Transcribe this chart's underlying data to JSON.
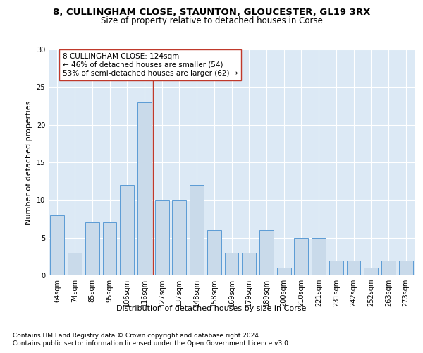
{
  "title1": "8, CULLINGHAM CLOSE, STAUNTON, GLOUCESTER, GL19 3RX",
  "title2": "Size of property relative to detached houses in Corse",
  "xlabel": "Distribution of detached houses by size in Corse",
  "ylabel": "Number of detached properties",
  "categories": [
    "64sqm",
    "74sqm",
    "85sqm",
    "95sqm",
    "106sqm",
    "116sqm",
    "127sqm",
    "137sqm",
    "148sqm",
    "158sqm",
    "169sqm",
    "179sqm",
    "189sqm",
    "200sqm",
    "210sqm",
    "221sqm",
    "231sqm",
    "242sqm",
    "252sqm",
    "263sqm",
    "273sqm"
  ],
  "values": [
    8,
    3,
    7,
    7,
    12,
    23,
    10,
    10,
    12,
    6,
    3,
    3,
    6,
    1,
    5,
    5,
    2,
    2,
    1,
    2,
    2
  ],
  "bar_color": "#c9daea",
  "bar_edge_color": "#5b9bd5",
  "bar_width": 0.8,
  "vline_x": 5.5,
  "vline_color": "#c0392b",
  "annotation_box_text": "8 CULLINGHAM CLOSE: 124sqm\n← 46% of detached houses are smaller (54)\n53% of semi-detached houses are larger (62) →",
  "ylim": [
    0,
    30
  ],
  "yticks": [
    0,
    5,
    10,
    15,
    20,
    25,
    30
  ],
  "footnote1": "Contains HM Land Registry data © Crown copyright and database right 2024.",
  "footnote2": "Contains public sector information licensed under the Open Government Licence v3.0.",
  "bg_color": "#dce9f5",
  "title1_fontsize": 9.5,
  "title2_fontsize": 8.5,
  "axis_label_fontsize": 8,
  "tick_fontsize": 7,
  "annotation_fontsize": 7.5,
  "footnote_fontsize": 6.5
}
